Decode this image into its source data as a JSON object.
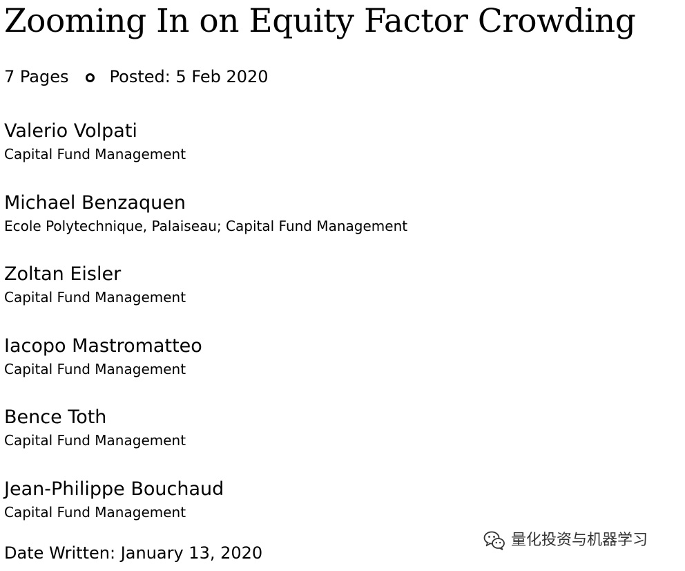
{
  "paper": {
    "title": "Zooming In on Equity Factor Crowding",
    "pages": "7 Pages",
    "posted": "Posted: 5 Feb 2020",
    "date_written": "Date Written: January 13, 2020"
  },
  "authors": [
    {
      "name": "Valerio Volpati",
      "affiliation": "Capital Fund Management"
    },
    {
      "name": "Michael Benzaquen",
      "affiliation": "Ecole Polytechnique, Palaiseau; Capital Fund Management"
    },
    {
      "name": "Zoltan Eisler",
      "affiliation": "Capital Fund Management"
    },
    {
      "name": "Iacopo Mastromatteo",
      "affiliation": "Capital Fund Management"
    },
    {
      "name": "Bence Toth",
      "affiliation": "Capital Fund Management"
    },
    {
      "name": "Jean-Philippe Bouchaud",
      "affiliation": "Capital Fund Management"
    }
  ],
  "watermark": {
    "icon": "wechat-icon",
    "text": "量化投资与机器学习"
  }
}
